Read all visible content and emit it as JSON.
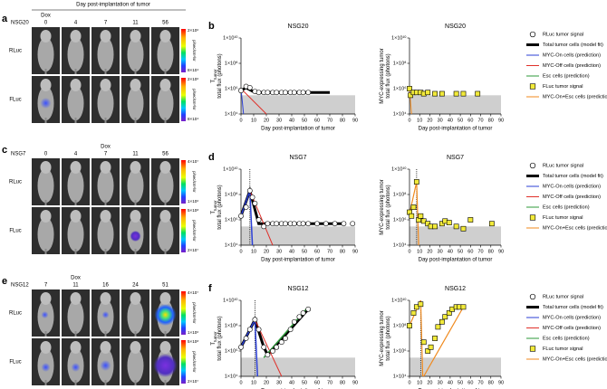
{
  "figure": {
    "header": "Day post-implantation of tumor",
    "rows": [
      {
        "letter": "a",
        "mouse": "NSG20",
        "days": [
          0,
          4,
          7,
          11,
          56
        ],
        "dox_label": "Dox",
        "dox_index": 0,
        "channels": [
          "RLuc",
          "FLuc"
        ],
        "colorbars": [
          {
            "max": "2×10⁶",
            "min": "8×10⁴",
            "unit": "p/sec/cm²/sr"
          },
          {
            "max": "2×10⁶",
            "min": "8×10⁴",
            "unit": "p/sec/cm²/sr"
          }
        ]
      },
      {
        "letter": "c",
        "mouse": "NSG7",
        "days": [
          0,
          4,
          7,
          11,
          56
        ],
        "dox_label": "Dox",
        "dox_index": 2,
        "channels": [
          "RLuc",
          "FLuc"
        ],
        "colorbars": [
          {
            "max": "4×10⁷",
            "min": "1×10⁶",
            "unit": "p/sec/cm²/sr"
          },
          {
            "max": "5×10⁸",
            "min": "2×10⁷",
            "unit": "p/sec/cm²/sr"
          }
        ]
      },
      {
        "letter": "e",
        "mouse": "NSG12",
        "days": [
          7,
          11,
          16,
          24,
          51
        ],
        "dox_label": "Dox",
        "dox_index": 1,
        "channels": [
          "RLuc",
          "FLuc"
        ],
        "colorbars": [
          {
            "max": "4×10⁷",
            "min": "1×10⁶",
            "unit": "p/sec/cm²/sr"
          },
          {
            "max": "5×10⁸",
            "min": "2×10⁷",
            "unit": "p/sec/cm²/sr"
          }
        ]
      }
    ]
  },
  "legends": [
    [
      {
        "name": "RLuc tumor signal",
        "color": "#000000",
        "marker": "circle"
      },
      {
        "name": "Total tumor cells (model fit)",
        "color": "#000000",
        "marker": "thick"
      },
      {
        "name": "MYC-On cells (prediction)",
        "color": "#2b3fd6",
        "marker": "line"
      },
      {
        "name": "MYC-Off cells (prediction)",
        "color": "#e0302a",
        "marker": "line"
      },
      {
        "name": "Esc cells (prediction)",
        "color": "#2e9a3a",
        "marker": "line"
      },
      {
        "name": "FLuc tumor signal",
        "color": "#f2ea3a",
        "marker": "square"
      },
      {
        "name": "MYC-On+Esc cells (prediction)",
        "color": "#f08a1e",
        "marker": "line"
      }
    ],
    [
      {
        "name": "RLuc tumor signal",
        "color": "#000000",
        "marker": "circle"
      },
      {
        "name": "Total tumor cells (model fit)",
        "color": "#000000",
        "marker": "thick"
      },
      {
        "name": "MYC-On cells (prediction)",
        "color": "#2b3fd6",
        "marker": "line"
      },
      {
        "name": "MYC-Off cells (prediction)",
        "color": "#e0302a",
        "marker": "line"
      },
      {
        "name": "Esc cells (prediction)",
        "color": "#2e9a3a",
        "marker": "line"
      },
      {
        "name": "FLuc tumor signal",
        "color": "#f2ea3a",
        "marker": "square"
      },
      {
        "name": "MYC-On+Esc cells (prediction)",
        "color": "#f08a1e",
        "marker": "line"
      }
    ],
    [
      {
        "name": "RLuc tumor signal",
        "color": "#000000",
        "marker": "circle"
      },
      {
        "name": "Total tumor cells (model fit)",
        "color": "#000000",
        "marker": "thick"
      },
      {
        "name": "MYC-On cells (prediction)",
        "color": "#2b3fd6",
        "marker": "line"
      },
      {
        "name": "MYC-Off cells (prediction)",
        "color": "#e0302a",
        "marker": "line"
      },
      {
        "name": "Esc cells (prediction)",
        "color": "#2e9a3a",
        "marker": "line"
      },
      {
        "name": "FLuc tumor signal",
        "color": "#f2ea3a",
        "marker": "square"
      },
      {
        "name": "MYC-On+Esc cells (prediction)",
        "color": "#f08a1e",
        "marker": "line"
      }
    ]
  ],
  "chart_data": [
    {
      "type": "line",
      "letter": "b",
      "title": "NSG20",
      "xlabel": "Day post-implantation of tumor",
      "ylabel": [
        [
          "T",
          "tumor"
        ],
        [
          "total flux (photons)"
        ]
      ],
      "xlim": [
        0,
        90
      ],
      "xticks": [
        0,
        10,
        20,
        30,
        40,
        50,
        60,
        70,
        80,
        90
      ],
      "ylim": [
        10000.0,
        10000000000.0
      ],
      "log_y": true,
      "yticks": [
        {
          "value": 10000.0,
          "label": "1×10⁴"
        },
        {
          "value": 1000000.0,
          "label": "1×10⁶"
        },
        {
          "value": 100000000.0,
          "label": "1×10⁸"
        },
        {
          "value": 10000000000.0,
          "label": "1×10¹⁰"
        }
      ],
      "shaded_band": [
        10000.0,
        300000.0
      ],
      "series": [
        {
          "color": "#000000",
          "marker": "none",
          "width": 3,
          "x": [
            0,
            4,
            11,
            70
          ],
          "values": [
            700000.0,
            1200000.0,
            500000.0,
            500000.0
          ]
        },
        {
          "color": "#2b3fd6",
          "marker": "none",
          "width": 1,
          "x": [
            0,
            2
          ],
          "values": [
            1000000.0,
            10000.0
          ]
        },
        {
          "color": "#e0302a",
          "marker": "none",
          "width": 1,
          "x": [
            0,
            20
          ],
          "values": [
            1000000.0,
            10000.0
          ]
        },
        {
          "color": "#000000",
          "marker": "circle",
          "x": [
            0,
            4,
            7,
            11,
            14,
            18,
            21,
            25,
            28,
            32,
            35,
            39,
            42,
            46,
            49,
            53
          ],
          "values": [
            700000.0,
            1500000.0,
            1200000.0,
            600000.0,
            500000.0,
            500000.0,
            500000.0,
            500000.0,
            500000.0,
            500000.0,
            500000.0,
            500000.0,
            500000.0,
            500000.0,
            500000.0,
            500000.0
          ]
        }
      ]
    },
    {
      "type": "line",
      "title": "NSG20",
      "xlabel": "Day post-implantation of tumor",
      "ylabel": [
        [
          "MYC-expressing tumor"
        ],
        [
          "total flux (photons)"
        ]
      ],
      "xlim": [
        0,
        90
      ],
      "xticks": [
        0,
        10,
        20,
        30,
        40,
        50,
        60,
        70,
        80,
        90
      ],
      "ylim": [
        10000.0,
        10000000000.0
      ],
      "log_y": true,
      "yticks": [
        {
          "value": 10000.0,
          "label": "1×10⁴"
        },
        {
          "value": 1000000.0,
          "label": "1×10⁶"
        },
        {
          "value": 100000000.0,
          "label": "1×10⁸"
        },
        {
          "value": 10000000000.0,
          "label": "1×10¹⁰"
        }
      ],
      "shaded_band": [
        10000.0,
        300000.0
      ],
      "series": [
        {
          "color": "#f08a1e",
          "marker": "none",
          "width": 1,
          "x": [
            0,
            2
          ],
          "values": [
            1000000.0,
            10000.0
          ]
        },
        {
          "color": "#f2ea3a",
          "marker": "square",
          "x": [
            0,
            1,
            4,
            7,
            11,
            14,
            18,
            25,
            32,
            46,
            53,
            67
          ],
          "values": [
            1000000.0,
            300000.0,
            500000.0,
            500000.0,
            500000.0,
            400000.0,
            500000.0,
            400000.0,
            400000.0,
            400000.0,
            400000.0,
            400000.0
          ]
        }
      ]
    },
    {
      "type": "line",
      "letter": "d",
      "title": "NSG7",
      "xlabel": "Day post-implantation of tumor",
      "ylabel": [
        [
          "T",
          "tumor"
        ],
        [
          "total flux (photons)"
        ]
      ],
      "xlim": [
        0,
        90
      ],
      "xticks": [
        0,
        10,
        20,
        30,
        40,
        50,
        60,
        70,
        80,
        90
      ],
      "ylim": [
        10000.0,
        10000000000.0
      ],
      "log_y": true,
      "yticks": [
        {
          "value": 10000.0,
          "label": "1×10⁴"
        },
        {
          "value": 1000000.0,
          "label": "1×10⁶"
        },
        {
          "value": 100000000.0,
          "label": "1×10⁸"
        },
        {
          "value": 10000000000.0,
          "label": "1×10¹⁰"
        }
      ],
      "shaded_band": [
        10000.0,
        300000.0
      ],
      "dox_day": 7,
      "series": [
        {
          "color": "#000000",
          "marker": "none",
          "width": 3,
          "x": [
            0,
            7,
            14,
            80
          ],
          "values": [
            2000000.0,
            200000000.0,
            500000.0,
            500000.0
          ]
        },
        {
          "color": "#2b3fd6",
          "marker": "none",
          "width": 1.5,
          "x": [
            0,
            7,
            9
          ],
          "values": [
            2000000.0,
            200000000.0,
            10000.0
          ]
        },
        {
          "color": "#e0302a",
          "marker": "none",
          "width": 1,
          "x": [
            7,
            25
          ],
          "values": [
            200000000.0,
            10000.0
          ]
        },
        {
          "color": "#000000",
          "marker": "circle",
          "x": [
            0,
            4,
            7,
            9,
            11,
            14,
            18,
            21,
            25,
            28,
            32,
            35,
            39,
            42,
            46,
            49,
            53,
            60,
            67,
            74,
            81,
            88
          ],
          "values": [
            2000000.0,
            10000000.0,
            200000000.0,
            60000000.0,
            20000000.0,
            1000000.0,
            300000.0,
            500000.0,
            500000.0,
            500000.0,
            500000.0,
            500000.0,
            500000.0,
            500000.0,
            500000.0,
            500000.0,
            500000.0,
            500000.0,
            500000.0,
            500000.0,
            500000.0,
            500000.0
          ]
        }
      ]
    },
    {
      "type": "line",
      "title": "NSG7",
      "xlabel": "Day post-implantation of tumor",
      "ylabel": [
        [
          "MYC-expressing tumor"
        ],
        [
          "total flux (photons)"
        ]
      ],
      "xlim": [
        0,
        90
      ],
      "xticks": [
        0,
        10,
        20,
        30,
        40,
        50,
        60,
        70,
        80,
        90
      ],
      "ylim": [
        10000.0,
        10000000000.0
      ],
      "log_y": true,
      "yticks": [
        {
          "value": 10000.0,
          "label": "1×10⁴"
        },
        {
          "value": 1000000.0,
          "label": "1×10⁶"
        },
        {
          "value": 100000000.0,
          "label": "1×10⁸"
        },
        {
          "value": 10000000000.0,
          "label": "1×10¹⁰"
        }
      ],
      "shaded_band": [
        10000.0,
        300000.0
      ],
      "dox_day": 7,
      "series": [
        {
          "color": "#f08a1e",
          "marker": "none",
          "width": 1.2,
          "x": [
            0,
            7,
            9
          ],
          "values": [
            3000000.0,
            1000000000.0,
            10000.0
          ]
        },
        {
          "color": "#f2ea3a",
          "marker": "square",
          "x": [
            0,
            2,
            4,
            7,
            9,
            11,
            14,
            18,
            21,
            25,
            32,
            35,
            39,
            46,
            53,
            60,
            81
          ],
          "values": [
            4000000.0,
            2000000.0,
            10000000.0,
            1000000000.0,
            1000000.0,
            2000000.0,
            800000.0,
            500000.0,
            300000.0,
            300000.0,
            500000.0,
            800000.0,
            600000.0,
            300000.0,
            200000.0,
            1000000.0,
            500000.0
          ]
        }
      ]
    },
    {
      "type": "line",
      "letter": "f",
      "title": "NSG12",
      "xlabel": "Day post-implantation of tumor",
      "ylabel": [
        [
          "T",
          "tumor"
        ],
        [
          "total flux (photons)"
        ]
      ],
      "xlim": [
        0,
        90
      ],
      "xticks": [
        0,
        10,
        20,
        30,
        40,
        50,
        60,
        70,
        80,
        90
      ],
      "ylim": [
        10000.0,
        10000000000.0
      ],
      "log_y": true,
      "yticks": [
        {
          "value": 10000.0,
          "label": "1×10⁴"
        },
        {
          "value": 1000000.0,
          "label": "1×10⁶"
        },
        {
          "value": 100000000.0,
          "label": "1×10⁸"
        },
        {
          "value": 10000000000.0,
          "label": "1×10¹⁰"
        }
      ],
      "shaded_band": [
        10000.0,
        300000.0
      ],
      "dox_day": 11,
      "series": [
        {
          "color": "#000000",
          "marker": "none",
          "width": 3,
          "x": [
            0,
            11,
            18,
            21,
            53
          ],
          "values": [
            2000000.0,
            300000000.0,
            2000000.0,
            500000.0,
            2000000000.0
          ]
        },
        {
          "color": "#2b3fd6",
          "marker": "none",
          "width": 1.5,
          "x": [
            0,
            11,
            13
          ],
          "values": [
            2000000.0,
            300000000.0,
            10000.0
          ]
        },
        {
          "color": "#e0302a",
          "marker": "none",
          "width": 1,
          "x": [
            11,
            32
          ],
          "values": [
            300000000.0,
            10000.0
          ]
        },
        {
          "color": "#2e9a3a",
          "marker": "none",
          "width": 1.5,
          "x": [
            18,
            53
          ],
          "values": [
            300000.0,
            3000000000.0
          ]
        },
        {
          "color": "#000000",
          "marker": "circle",
          "x": [
            0,
            4,
            7,
            11,
            14,
            18,
            21,
            25,
            28,
            32,
            35,
            39,
            42,
            46,
            49,
            53
          ],
          "values": [
            2000000.0,
            10000000.0,
            50000000.0,
            300000000.0,
            50000000.0,
            2000000.0,
            500000.0,
            1000000.0,
            2000000.0,
            5000000.0,
            10000000.0,
            50000000.0,
            200000000.0,
            500000000.0,
            1000000000.0,
            2000000000.0
          ]
        }
      ]
    },
    {
      "type": "line",
      "title": "NSG12",
      "xlabel": "Day post-implantation of tumor",
      "ylabel": [
        [
          "MYC-expressing tumor"
        ],
        [
          "total flux (photons)"
        ]
      ],
      "xlim": [
        0,
        90
      ],
      "xticks": [
        0,
        10,
        20,
        30,
        40,
        50,
        60,
        70,
        80,
        90
      ],
      "ylim": [
        10000.0,
        10000000000.0
      ],
      "log_y": true,
      "yticks": [
        {
          "value": 10000.0,
          "label": "1×10⁴"
        },
        {
          "value": 1000000.0,
          "label": "1×10⁶"
        },
        {
          "value": 100000000.0,
          "label": "1×10⁸"
        },
        {
          "value": 10000000000.0,
          "label": "1×10¹⁰"
        }
      ],
      "shaded_band": [
        10000.0,
        300000.0
      ],
      "dox_day": 11,
      "series": [
        {
          "color": "#f08a1e",
          "marker": "none",
          "width": 1.2,
          "x": [
            0,
            11,
            13,
            13,
            14,
            53
          ],
          "values": [
            100000000.0,
            10000000000.0,
            10000.0,
            null,
            10000.0,
            3000000000.0
          ]
        },
        {
          "color": "#f2ea3a",
          "marker": "square",
          "x": [
            0,
            4,
            7,
            11,
            14,
            18,
            21,
            25,
            28,
            32,
            35,
            39,
            42,
            46,
            49,
            53
          ],
          "values": [
            100000000.0,
            1000000000.0,
            3000000000.0,
            5000000000.0,
            5000000.0,
            1000000.0,
            2000000.0,
            10000000.0,
            80000000.0,
            200000000.0,
            500000000.0,
            1000000000.0,
            2000000000.0,
            3000000000.0,
            3000000000.0,
            3000000000.0
          ]
        }
      ]
    }
  ]
}
